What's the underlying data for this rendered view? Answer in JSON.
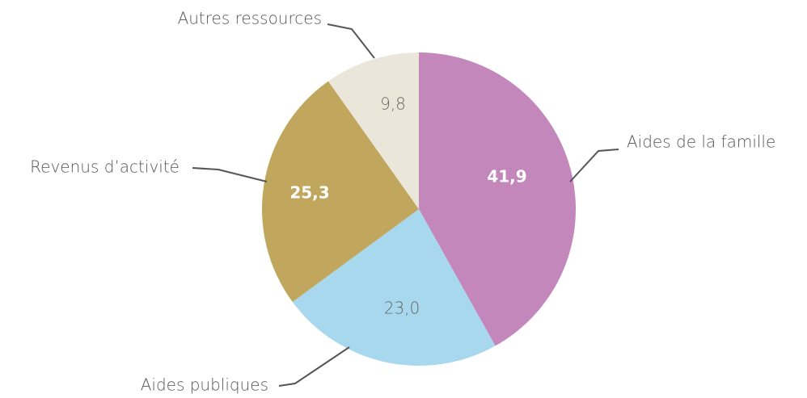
{
  "chart_data": {
    "type": "pie",
    "categories": [
      "Aides de la famille",
      "Aides publiques",
      "Revenus d’activité",
      "Autres ressources"
    ],
    "values": [
      41.9,
      23.0,
      25.3,
      9.8
    ],
    "value_labels": [
      "41,9",
      "23,0",
      "25,3",
      "9,8"
    ],
    "colors": [
      "#c387bc",
      "#a8d8ee",
      "#c1a75e",
      "#ebe6da"
    ],
    "value_label_colors": [
      "#ffffff",
      "#666666",
      "#ffffff",
      "#666666"
    ]
  }
}
